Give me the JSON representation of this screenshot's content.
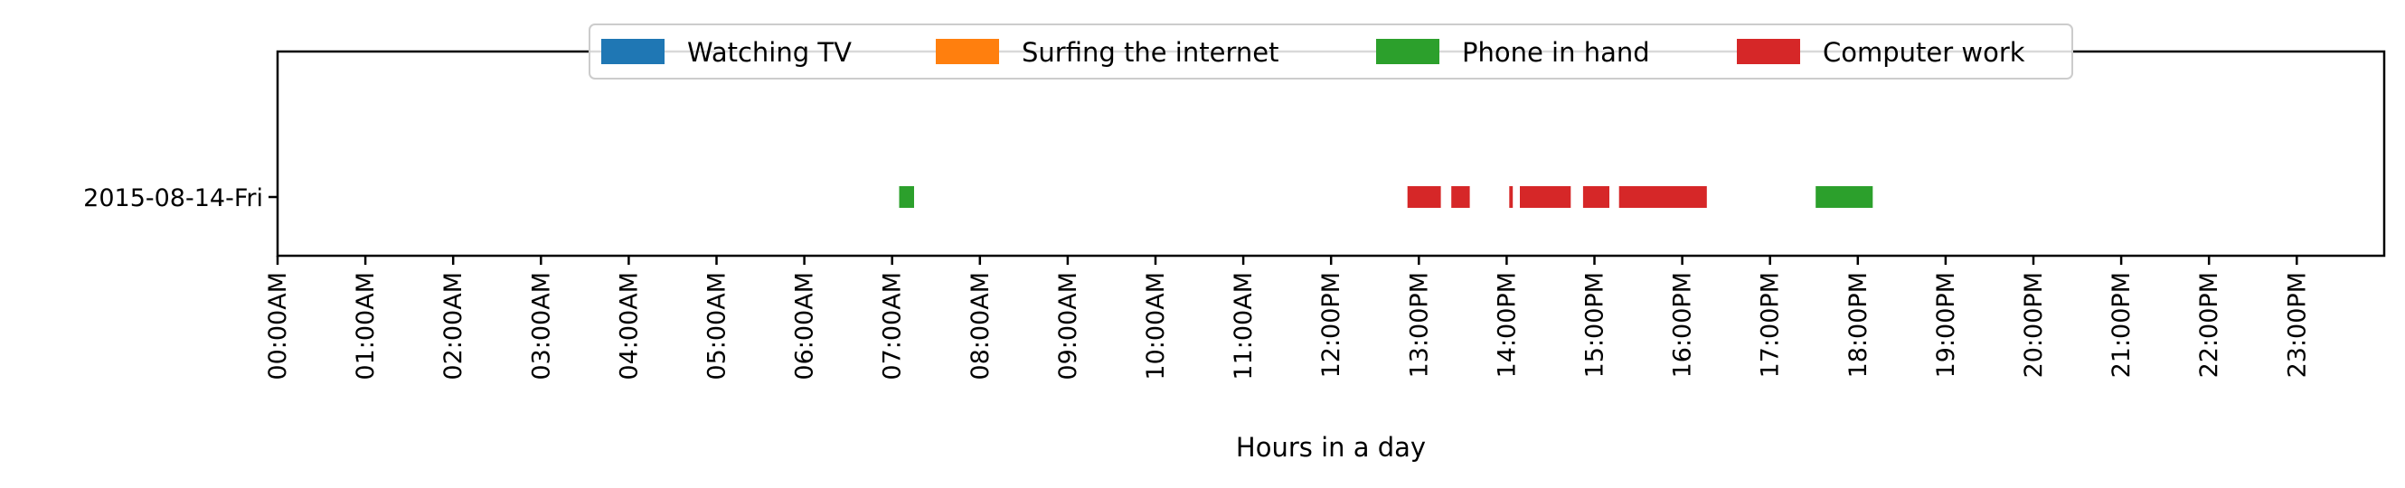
{
  "chart_data": {
    "type": "timeline",
    "xlabel": "Hours in a day",
    "ylabel": "",
    "xlim": [
      0,
      24
    ],
    "grid": false,
    "legend_placement": "top-center",
    "categories": [
      "2015-08-14-Fri"
    ],
    "x_ticks": [
      {
        "value": 0,
        "label": "00:00AM"
      },
      {
        "value": 1,
        "label": "01:00AM"
      },
      {
        "value": 2,
        "label": "02:00AM"
      },
      {
        "value": 3,
        "label": "03:00AM"
      },
      {
        "value": 4,
        "label": "04:00AM"
      },
      {
        "value": 5,
        "label": "05:00AM"
      },
      {
        "value": 6,
        "label": "06:00AM"
      },
      {
        "value": 7,
        "label": "07:00AM"
      },
      {
        "value": 8,
        "label": "08:00AM"
      },
      {
        "value": 9,
        "label": "09:00AM"
      },
      {
        "value": 10,
        "label": "10:00AM"
      },
      {
        "value": 11,
        "label": "11:00AM"
      },
      {
        "value": 12,
        "label": "12:00PM"
      },
      {
        "value": 13,
        "label": "13:00PM"
      },
      {
        "value": 14,
        "label": "14:00PM"
      },
      {
        "value": 15,
        "label": "15:00PM"
      },
      {
        "value": 16,
        "label": "16:00PM"
      },
      {
        "value": 17,
        "label": "17:00PM"
      },
      {
        "value": 18,
        "label": "18:00PM"
      },
      {
        "value": 19,
        "label": "19:00PM"
      },
      {
        "value": 20,
        "label": "20:00PM"
      },
      {
        "value": 21,
        "label": "21:00PM"
      },
      {
        "value": 22,
        "label": "22:00PM"
      },
      {
        "value": 23,
        "label": "23:00PM"
      }
    ],
    "series": [
      {
        "name": "Watching TV",
        "color": "#1f77b4",
        "intervals": []
      },
      {
        "name": "Surfing the internet",
        "color": "#ff7f0e",
        "intervals": []
      },
      {
        "name": "Phone in hand",
        "color": "#2ca02c",
        "intervals": [
          {
            "day": "2015-08-14-Fri",
            "start": 7.08,
            "end": 7.25
          },
          {
            "day": "2015-08-14-Fri",
            "start": 17.52,
            "end": 18.17
          }
        ]
      },
      {
        "name": "Computer work",
        "color": "#d62728",
        "intervals": [
          {
            "day": "2015-08-14-Fri",
            "start": 12.87,
            "end": 13.25
          },
          {
            "day": "2015-08-14-Fri",
            "start": 13.37,
            "end": 13.58
          },
          {
            "day": "2015-08-14-Fri",
            "start": 14.03,
            "end": 14.07
          },
          {
            "day": "2015-08-14-Fri",
            "start": 14.15,
            "end": 14.73
          },
          {
            "day": "2015-08-14-Fri",
            "start": 14.87,
            "end": 15.17
          },
          {
            "day": "2015-08-14-Fri",
            "start": 15.28,
            "end": 16.28
          }
        ]
      }
    ]
  }
}
